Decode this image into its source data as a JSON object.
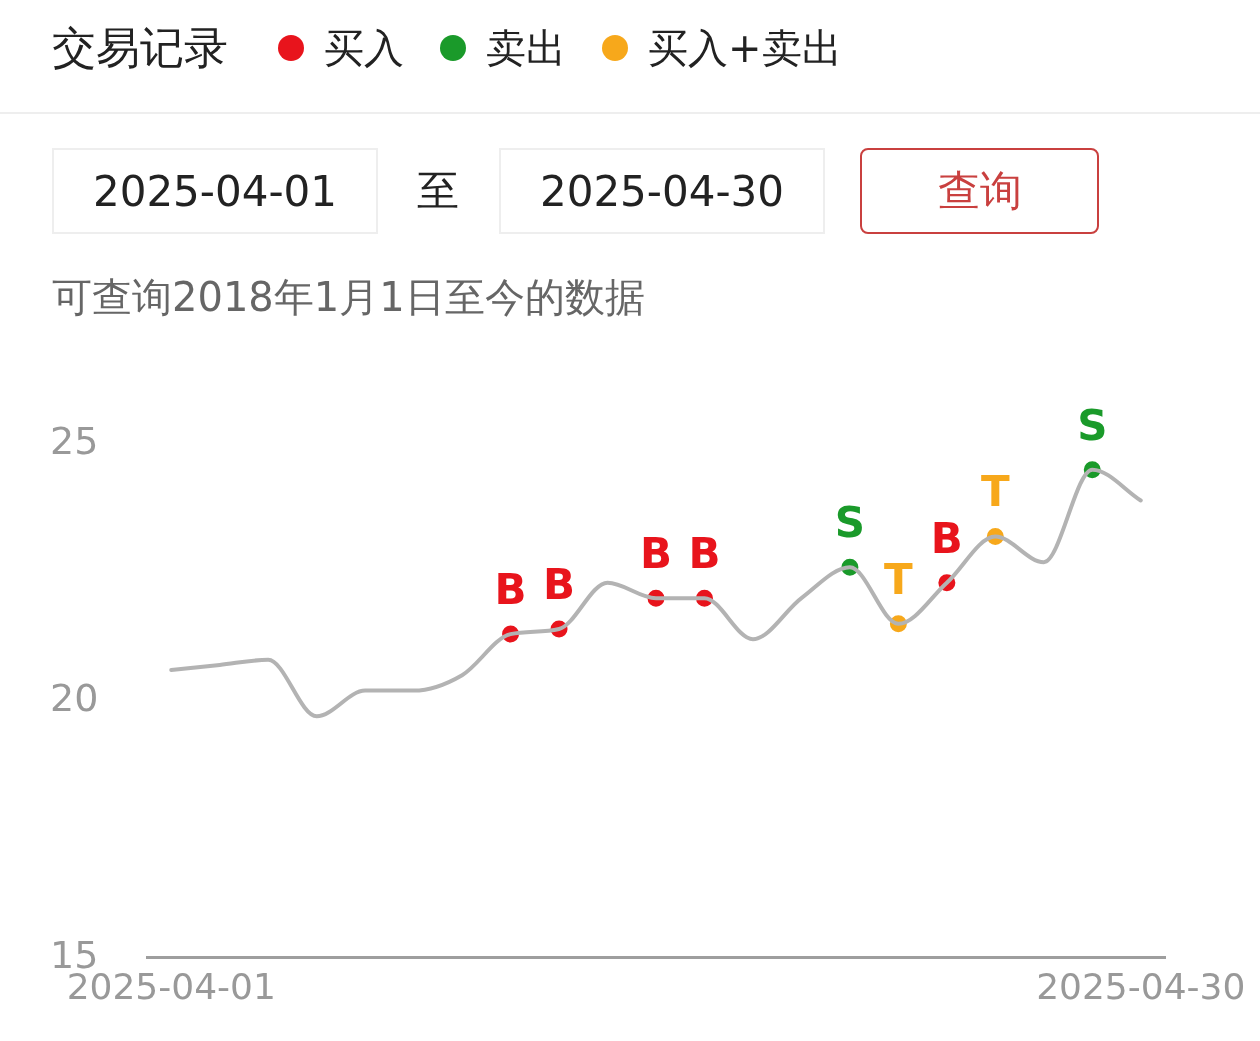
{
  "chart_data": {
    "type": "line",
    "title": "交易记录",
    "subtitle": "可查询2018年1月1日至今的数据",
    "annotations": [
      "2025-04-01",
      "至",
      "2025-04-30",
      "查询"
    ],
    "categories": [
      "2025-04-01",
      null,
      null,
      null,
      null,
      null,
      null,
      null,
      null,
      null,
      null,
      null,
      null,
      null,
      null,
      null,
      null,
      null,
      null,
      null,
      "2025-04-30"
    ],
    "series": [
      {
        "color": "#b3b3b3",
        "marker": "none",
        "values": [
          20.6,
          20.7,
          20.8,
          19.7,
          20.2,
          20.2,
          20.5,
          21.3,
          21.4,
          22.3,
          22.0,
          22.0,
          21.2,
          22.0,
          22.6,
          21.5,
          22.3,
          23.2,
          22.7,
          24.5,
          23.9
        ]
      },
      {
        "type": "scatter",
        "name": "买入",
        "color": "#e8141c",
        "marker": "circle",
        "values": [
          null,
          null,
          null,
          null,
          null,
          null,
          null,
          21.3,
          21.4,
          null,
          22.0,
          22.0,
          null,
          null,
          null,
          null,
          22.3,
          null,
          null,
          null,
          null
        ],
        "value_labels": [
          null,
          null,
          null,
          null,
          null,
          null,
          null,
          "B",
          "B",
          null,
          "B",
          "B",
          null,
          null,
          null,
          null,
          "B",
          null,
          null,
          null,
          null
        ]
      },
      {
        "type": "scatter",
        "name": "卖出",
        "color": "#1a9a2a",
        "marker": "circle",
        "values": [
          null,
          null,
          null,
          null,
          null,
          null,
          null,
          null,
          null,
          null,
          null,
          null,
          null,
          null,
          22.6,
          null,
          null,
          null,
          null,
          24.5,
          null
        ],
        "value_labels": [
          null,
          null,
          null,
          null,
          null,
          null,
          null,
          null,
          null,
          null,
          null,
          null,
          null,
          null,
          "S",
          null,
          null,
          null,
          null,
          "S",
          null
        ]
      },
      {
        "type": "scatter",
        "name": "买入+卖出",
        "color": "#f7a81b",
        "marker": "circle",
        "values": [
          null,
          null,
          null,
          null,
          null,
          null,
          null,
          null,
          null,
          null,
          null,
          null,
          null,
          null,
          null,
          21.5,
          null,
          23.2,
          null,
          null,
          null
        ],
        "value_labels": [
          null,
          null,
          null,
          null,
          null,
          null,
          null,
          null,
          null,
          null,
          null,
          null,
          null,
          null,
          null,
          "T",
          null,
          "T",
          null,
          null,
          null
        ]
      }
    ],
    "ylim": [
      15,
      25
    ],
    "yticks": [
      15,
      20,
      25
    ],
    "grid": false,
    "legend": "top"
  }
}
